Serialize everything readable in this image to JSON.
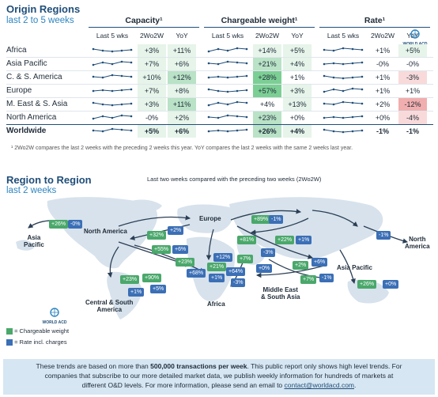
{
  "origin": {
    "title": "Origin Regions",
    "subtitle": "last 2 to 5 weeks",
    "groups": {
      "capacity": "Capacity¹",
      "weight": "Chargeable weight¹",
      "rate": "Rate¹"
    },
    "subheads": {
      "last5": "Last 5 wks",
      "w2w": "2Wo2W",
      "yoy": "YoY"
    },
    "rows": [
      {
        "name": "Africa",
        "cap_2w": "+3%",
        "cap_yoy": "+11%",
        "wt_2w": "+14%",
        "wt_yoy": "+5%",
        "rate_2w": "+1%",
        "rate_yoy": "+5%"
      },
      {
        "name": "Asia Pacific",
        "cap_2w": "+7%",
        "cap_yoy": "+6%",
        "wt_2w": "+21%",
        "wt_yoy": "+4%",
        "rate_2w": "-0%",
        "rate_yoy": "-0%"
      },
      {
        "name": "C. & S. America",
        "cap_2w": "+10%",
        "cap_yoy": "+12%",
        "wt_2w": "+28%",
        "wt_yoy": "+1%",
        "rate_2w": "+1%",
        "rate_yoy": "-3%"
      },
      {
        "name": "Europe",
        "cap_2w": "+7%",
        "cap_yoy": "+8%",
        "wt_2w": "+57%",
        "wt_yoy": "+3%",
        "rate_2w": "+1%",
        "rate_yoy": "+1%"
      },
      {
        "name": "M. East & S. Asia",
        "cap_2w": "+3%",
        "cap_yoy": "+11%",
        "wt_2w": "+4%",
        "wt_yoy": "+13%",
        "rate_2w": "+2%",
        "rate_yoy": "-12%"
      },
      {
        "name": "North America",
        "cap_2w": "-0%",
        "cap_yoy": "+2%",
        "wt_2w": "+23%",
        "wt_yoy": "+0%",
        "rate_2w": "+0%",
        "rate_yoy": "-4%"
      },
      {
        "name": "Worldwide",
        "cap_2w": "+5%",
        "cap_yoy": "+6%",
        "wt_2w": "+26%",
        "wt_yoy": "+4%",
        "rate_2w": "-1%",
        "rate_yoy": "-1%"
      }
    ],
    "footnote": "¹ 2Wo2W compares the last 2 weeks with the preceding 2 weeks this year. YoY compares the last 2 weeks with the same 2 weeks last year.",
    "logo_text": "WORLD ACD"
  },
  "region": {
    "title": "Region to Region",
    "subtitle": "last 2 weeks",
    "map_caption": "Last two weeks compared with the preceding two weeks (2Wo2W)",
    "labels": {
      "asia_pacific_left": "Asia\nPacific",
      "north_america": "North America",
      "europe": "Europe",
      "asia_pacific": "Asia Pacific",
      "north_america_right": "North\nAmerica",
      "middle_east": "Middle East\n& South Asia",
      "central_south_america": "Central & South\nAmerica",
      "africa": "Africa"
    },
    "tags": [
      "+26%",
      "-0%",
      "+32%",
      "+2%",
      "+55%",
      "+6%",
      "+23%",
      "+68%",
      "+21%",
      "+64%",
      "+12%",
      "+7%",
      "+81%",
      "+89%",
      "-1%",
      "+22%",
      "+1%",
      "-3%",
      "+0%",
      "+2%",
      "+6%",
      "+7%",
      "-1%",
      "-1%",
      "+26%",
      "+0%",
      "+23%",
      "+90%",
      "+5%",
      "+1%",
      "+1%",
      "-3%"
    ],
    "legend": {
      "green": "= Chargeable weight",
      "blue": "= Rate incl. charges"
    },
    "logo_text": "WORLD ACD"
  },
  "banner": {
    "line1a": "These trends are based on more than ",
    "line1b": "500,000 transactions per week",
    "line1c": ". This public report only shows high level trends. For",
    "line2": "companies that subscribe to our more detailed market data, we publish weekly information for hundreds of markets at",
    "line3a": "different O&D levels. For more information, please send an email to ",
    "email": "contact@worldacd.com",
    "line3b": "."
  },
  "colors": {
    "green_tag": "#4aa86b",
    "blue_tag": "#3b6fb6",
    "title": "#1f4e79",
    "accent": "#2e86c1"
  }
}
